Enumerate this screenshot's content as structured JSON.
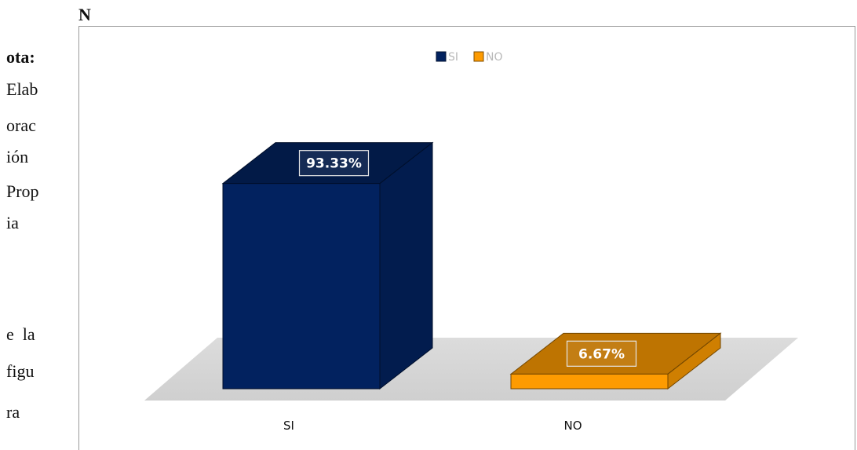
{
  "side_text": [
    {
      "text": "N",
      "bold": true
    },
    {
      "text": "ota:",
      "bold": true
    },
    {
      "text": "Elab",
      "bold": false
    },
    {
      "text": "orac",
      "bold": false
    },
    {
      "text": "ión",
      "bold": false
    },
    {
      "text": "Prop",
      "bold": false
    },
    {
      "text": "ia",
      "bold": false
    },
    {
      "text": "e  la",
      "bold": false
    },
    {
      "text": "figu",
      "bold": false
    },
    {
      "text": "ra",
      "bold": false
    }
  ],
  "chart_data": {
    "type": "bar",
    "style": "3d",
    "categories": [
      "SI",
      "NO"
    ],
    "values": [
      93.33,
      6.67
    ],
    "value_labels": [
      "93.33%",
      "6.67%"
    ],
    "legend": [
      "SI",
      "NO"
    ],
    "legend_position": "top",
    "colors": [
      "#02225f",
      "#fd9b01"
    ],
    "ylim": [
      0,
      100
    ],
    "grid": false,
    "title": "",
    "xlabel": "",
    "ylabel": ""
  }
}
